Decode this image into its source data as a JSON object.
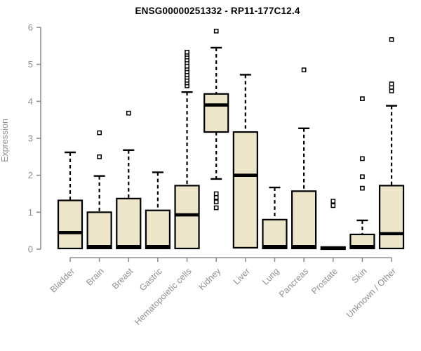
{
  "chart_data": {
    "type": "boxplot",
    "title": "ENSG00000251332 - RP11-177C12.4",
    "ylabel": "Expression",
    "xlabel": "",
    "ylim": [
      0,
      6
    ],
    "yticks": [
      0,
      1,
      2,
      3,
      4,
      5,
      6
    ],
    "grid": false,
    "legend": "none",
    "categories": [
      "Bladder",
      "Brain",
      "Breast",
      "Gastric",
      "Hematopoietic cells",
      "Kidney",
      "Liver",
      "Lung",
      "Pancreas",
      "Prostate",
      "Skin",
      "Unknown / Other"
    ],
    "series": [
      {
        "name": "Bladder",
        "whisker_low": 0.02,
        "q1": 0.02,
        "median": 0.45,
        "q3": 1.32,
        "whisker_high": 2.62,
        "outliers": []
      },
      {
        "name": "Brain",
        "whisker_low": 0.02,
        "q1": 0.02,
        "median": 0.07,
        "q3": 1.0,
        "whisker_high": 1.98,
        "outliers": [
          2.5,
          3.15
        ]
      },
      {
        "name": "Breast",
        "whisker_low": 0.02,
        "q1": 0.02,
        "median": 0.07,
        "q3": 1.37,
        "whisker_high": 2.68,
        "outliers": [
          3.68
        ]
      },
      {
        "name": "Gastric",
        "whisker_low": 0.02,
        "q1": 0.02,
        "median": 0.07,
        "q3": 1.05,
        "whisker_high": 2.08,
        "outliers": []
      },
      {
        "name": "Hematopoietic cells",
        "whisker_low": 0.02,
        "q1": 0.02,
        "median": 0.93,
        "q3": 1.72,
        "whisker_high": 4.25,
        "outliers": [
          4.42,
          4.5,
          4.57,
          4.65,
          4.72,
          4.8,
          4.88,
          4.95,
          5.05,
          5.12,
          5.2,
          5.27,
          5.33
        ]
      },
      {
        "name": "Kidney",
        "whisker_low": 1.9,
        "q1": 3.17,
        "median": 3.9,
        "q3": 4.2,
        "whisker_high": 5.45,
        "outliers": [
          1.12,
          1.28,
          1.4,
          1.5,
          5.9
        ]
      },
      {
        "name": "Liver",
        "whisker_low": 0.04,
        "q1": 0.04,
        "median": 2.0,
        "q3": 3.17,
        "whisker_high": 4.72,
        "outliers": []
      },
      {
        "name": "Lung",
        "whisker_low": 0.02,
        "q1": 0.02,
        "median": 0.07,
        "q3": 0.8,
        "whisker_high": 1.67,
        "outliers": []
      },
      {
        "name": "Pancreas",
        "whisker_low": 0.02,
        "q1": 0.02,
        "median": 0.07,
        "q3": 1.57,
        "whisker_high": 3.27,
        "outliers": [
          4.85
        ]
      },
      {
        "name": "Prostate",
        "whisker_low": 0.0,
        "q1": 0.0,
        "median": 0.03,
        "q3": 0.06,
        "whisker_high": 0.06,
        "outliers": [
          1.18,
          1.3
        ]
      },
      {
        "name": "Skin",
        "whisker_low": 0.02,
        "q1": 0.02,
        "median": 0.07,
        "q3": 0.4,
        "whisker_high": 0.78,
        "outliers": [
          1.65,
          1.96,
          2.45,
          4.07
        ]
      },
      {
        "name": "Unknown / Other",
        "whisker_low": 0.02,
        "q1": 0.02,
        "median": 0.42,
        "q3": 1.72,
        "whisker_high": 3.88,
        "outliers": [
          4.28,
          4.38,
          4.47,
          5.67
        ]
      }
    ],
    "colors": {
      "box_fill": "#ece5c9",
      "box_stroke": "#000000",
      "median": "#000000",
      "whisker": "#000000",
      "outlier_fill": "#ffffff",
      "outlier_stroke": "#000000",
      "axis": "#8f8f8f",
      "title": "#000000",
      "background": "#ffffff"
    }
  }
}
